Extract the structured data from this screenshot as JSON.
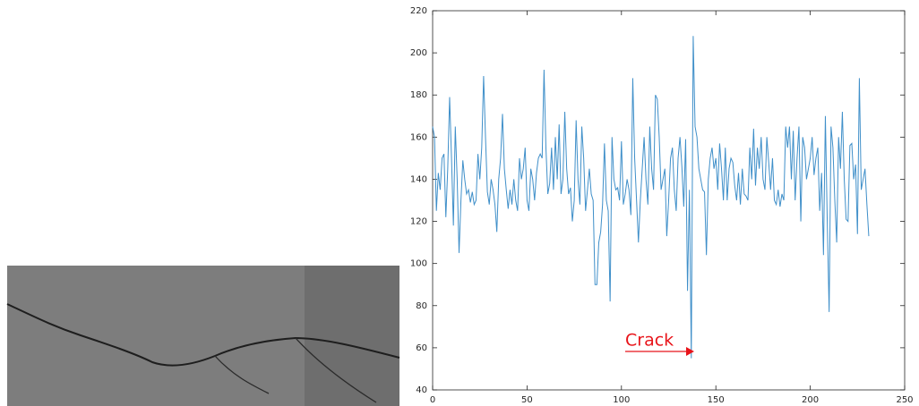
{
  "chart_data": {
    "type": "line",
    "annotation": "Crack",
    "x": [
      0,
      1,
      2,
      3,
      4,
      5,
      6,
      7,
      8,
      9,
      10,
      11,
      12,
      13,
      14,
      15,
      16,
      17,
      18,
      19,
      20,
      21,
      22,
      23,
      24,
      25,
      26,
      27,
      28,
      29,
      30,
      31,
      32,
      33,
      34,
      35,
      36,
      37,
      38,
      39,
      40,
      41,
      42,
      43,
      44,
      45,
      46,
      47,
      48,
      49,
      50,
      51,
      52,
      53,
      54,
      55,
      56,
      57,
      58,
      59,
      60,
      61,
      62,
      63,
      64,
      65,
      66,
      67,
      68,
      69,
      70,
      71,
      72,
      73,
      74,
      75,
      76,
      77,
      78,
      79,
      80,
      81,
      82,
      83,
      84,
      85,
      86,
      87,
      88,
      89,
      90,
      91,
      92,
      93,
      94,
      95,
      96,
      97,
      98,
      99,
      100,
      101,
      102,
      103,
      104,
      105,
      106,
      107,
      108,
      109,
      110,
      111,
      112,
      113,
      114,
      115,
      116,
      117,
      118,
      119,
      120,
      121,
      122,
      123,
      124,
      125,
      126,
      127,
      128,
      129,
      130,
      131,
      132,
      133,
      134,
      135,
      136,
      137,
      138,
      139,
      140,
      141,
      142,
      143,
      144,
      145,
      146,
      147,
      148,
      149,
      150,
      151,
      152,
      153,
      154,
      155,
      156,
      157,
      158,
      159,
      160,
      161,
      162,
      163,
      164,
      165,
      166,
      167,
      168,
      169,
      170,
      171,
      172,
      173,
      174,
      175,
      176,
      177,
      178,
      179,
      180,
      181,
      182,
      183,
      184,
      185,
      186,
      187,
      188,
      189,
      190,
      191,
      192,
      193,
      194,
      195,
      196,
      197,
      198,
      199,
      200,
      201,
      202,
      203,
      204,
      205,
      206,
      207,
      208,
      209,
      210,
      211,
      212,
      213,
      214,
      215,
      216,
      217,
      218,
      219,
      220,
      221,
      222,
      223,
      224,
      225,
      226,
      227,
      228,
      229,
      230,
      231
    ],
    "series": [
      {
        "color": "#3f8fc9",
        "values": [
          165,
          160,
          125,
          143,
          135,
          150,
          152,
          122,
          145,
          179,
          150,
          118,
          165,
          140,
          105,
          130,
          149,
          140,
          133,
          135,
          129,
          134,
          128,
          130,
          152,
          140,
          155,
          189,
          160,
          134,
          128,
          140,
          135,
          128,
          115,
          140,
          150,
          171,
          145,
          135,
          126,
          135,
          128,
          140,
          130,
          125,
          150,
          140,
          145,
          155,
          130,
          125,
          145,
          140,
          130,
          143,
          150,
          152,
          150,
          192,
          155,
          133,
          138,
          155,
          135,
          160,
          140,
          166,
          133,
          140,
          172,
          145,
          133,
          136,
          120,
          130,
          168,
          140,
          128,
          165,
          150,
          125,
          135,
          145,
          133,
          130,
          90,
          90,
          110,
          115,
          128,
          157,
          130,
          125,
          82,
          160,
          140,
          135,
          136,
          130,
          158,
          128,
          133,
          140,
          135,
          123,
          188,
          150,
          130,
          110,
          130,
          145,
          160,
          140,
          128,
          165,
          145,
          135,
          180,
          178,
          160,
          135,
          140,
          145,
          113,
          130,
          150,
          155,
          135,
          125,
          150,
          160,
          146,
          127,
          159,
          87,
          135,
          55,
          208,
          165,
          160,
          145,
          140,
          135,
          134,
          104,
          140,
          150,
          155,
          145,
          150,
          135,
          157,
          145,
          130,
          155,
          130,
          145,
          150,
          148,
          137,
          130,
          143,
          128,
          145,
          133,
          132,
          130,
          155,
          140,
          164,
          137,
          155,
          145,
          160,
          140,
          135,
          160,
          148,
          135,
          150,
          130,
          128,
          135,
          127,
          133,
          130,
          165,
          155,
          165,
          140,
          163,
          130,
          150,
          165,
          120,
          160,
          155,
          140,
          145,
          150,
          160,
          142,
          150,
          155,
          125,
          143,
          104,
          170,
          120,
          77,
          165,
          155,
          130,
          110,
          160,
          145,
          172,
          140,
          121,
          120,
          156,
          157,
          140,
          147,
          114,
          188,
          135,
          140,
          145,
          128,
          113
        ]
      }
    ],
    "xlim": [
      0,
      250
    ],
    "xticks": [
      0,
      50,
      100,
      150,
      200,
      250
    ],
    "ylim": [
      40,
      220
    ],
    "yticks": [
      40,
      60,
      80,
      100,
      120,
      140,
      160,
      180,
      200,
      220
    ]
  }
}
